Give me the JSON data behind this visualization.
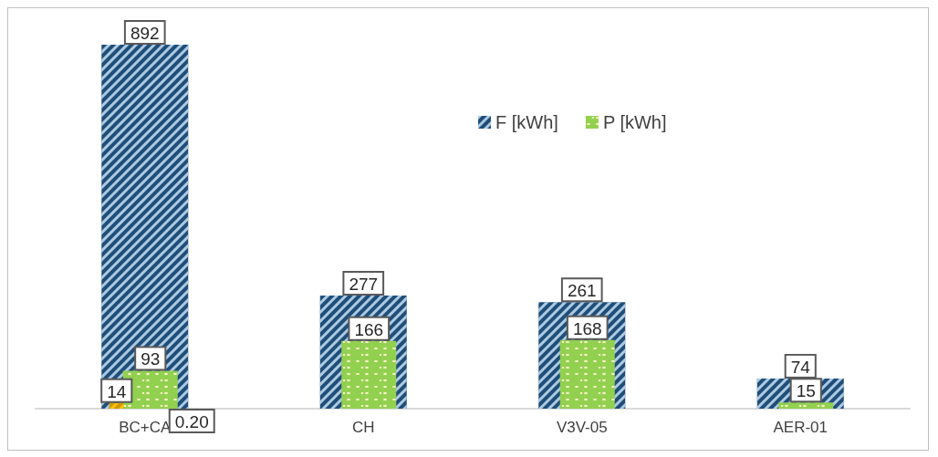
{
  "chart_data": {
    "type": "bar",
    "categories": [
      "BC+CA",
      "CH",
      "V3V-05",
      "AER-01"
    ],
    "series": [
      {
        "name": "F [kWh]",
        "color": "#1f4e79",
        "values": [
          892,
          277,
          261,
          74
        ]
      },
      {
        "name": "P [kWh]",
        "color": "#92d050",
        "values": [
          93,
          166,
          168,
          15
        ]
      },
      {
        "color": "#ffc000",
        "values": [
          14,
          null,
          null,
          null
        ]
      },
      {
        "color": "#a5a5a5",
        "values": [
          0.2,
          null,
          null,
          null
        ],
        "value_labels": [
          "0.20",
          null,
          null,
          null
        ]
      }
    ],
    "data_labels": true,
    "legend": "top right"
  }
}
